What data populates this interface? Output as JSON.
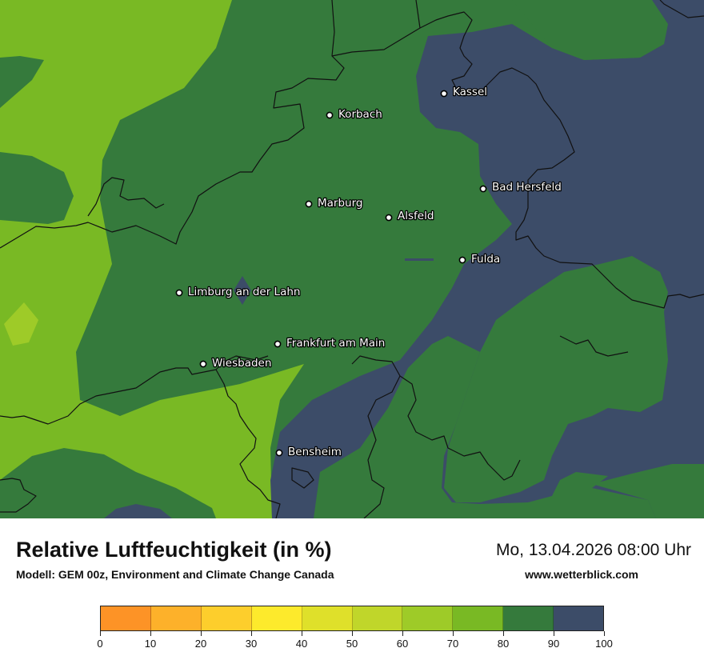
{
  "map": {
    "cities": [
      {
        "name": "Kassel"
      },
      {
        "name": "Korbach"
      },
      {
        "name": "Bad Hersfeld"
      },
      {
        "name": "Marburg"
      },
      {
        "name": "Alsfeld"
      },
      {
        "name": "Fulda"
      },
      {
        "name": "Limburg an der Lahn"
      },
      {
        "name": "Frankfurt am Main"
      },
      {
        "name": "Wiesbaden"
      },
      {
        "name": "Bensheim"
      }
    ]
  },
  "footer": {
    "title": "Relative Luftfeuchtigkeit (in %)",
    "subtitle": "Modell: GEM 00z, Environment and Climate Change Canada",
    "datetime": "Mo, 13.04.2026 08:00 Uhr",
    "website": "www.wetterblick.com"
  },
  "legend": {
    "unit": "%",
    "bins": [
      {
        "from": 0,
        "to": 10,
        "color": "#fd9326"
      },
      {
        "from": 10,
        "to": 20,
        "color": "#fdb12a"
      },
      {
        "from": 20,
        "to": 30,
        "color": "#fdce2c"
      },
      {
        "from": 30,
        "to": 40,
        "color": "#fdea2c"
      },
      {
        "from": 40,
        "to": 50,
        "color": "#dfe02a"
      },
      {
        "from": 50,
        "to": 60,
        "color": "#c0d62a"
      },
      {
        "from": 60,
        "to": 70,
        "color": "#9ecb28"
      },
      {
        "from": 70,
        "to": 80,
        "color": "#79b924"
      },
      {
        "from": 80,
        "to": 90,
        "color": "#357a3c"
      },
      {
        "from": 90,
        "to": 100,
        "color": "#3c4c68"
      }
    ],
    "tick_labels": [
      "0",
      "10",
      "20",
      "30",
      "40",
      "50",
      "60",
      "70",
      "80",
      "90",
      "100"
    ]
  }
}
